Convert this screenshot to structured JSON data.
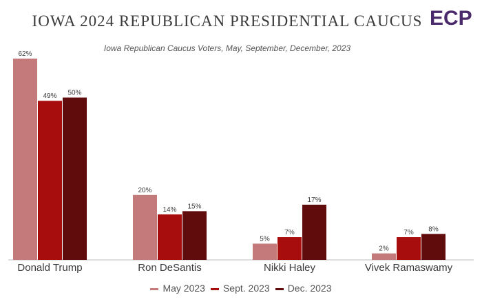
{
  "brand": {
    "logo_text": "ECP"
  },
  "colors": {
    "logo": "#4b2a6b",
    "axis": "#bdbdbd",
    "text": "#3a3a3a"
  },
  "chart_data": {
    "type": "bar",
    "title": "IOWA 2024 REPUBLICAN PRESIDENTIAL CAUCUS",
    "subtitle": "Iowa Republican Caucus Voters, May, September, December, 2023",
    "xlabel": "",
    "ylabel": "",
    "ylim": [
      0,
      62
    ],
    "grid": false,
    "legend_position": "bottom",
    "value_suffix": "%",
    "categories": [
      "Donald Trump",
      "Ron DeSantis",
      "Nikki Haley",
      "Vivek Ramaswamy"
    ],
    "series": [
      {
        "name": "May 2023",
        "color": "#c47a7a",
        "values": [
          62,
          20,
          5,
          2
        ]
      },
      {
        "name": "Sept. 2023",
        "color": "#a80d0d",
        "values": [
          49,
          14,
          7,
          7
        ]
      },
      {
        "name": "Dec. 2023",
        "color": "#610c0c",
        "values": [
          50,
          15,
          17,
          8
        ]
      }
    ]
  }
}
